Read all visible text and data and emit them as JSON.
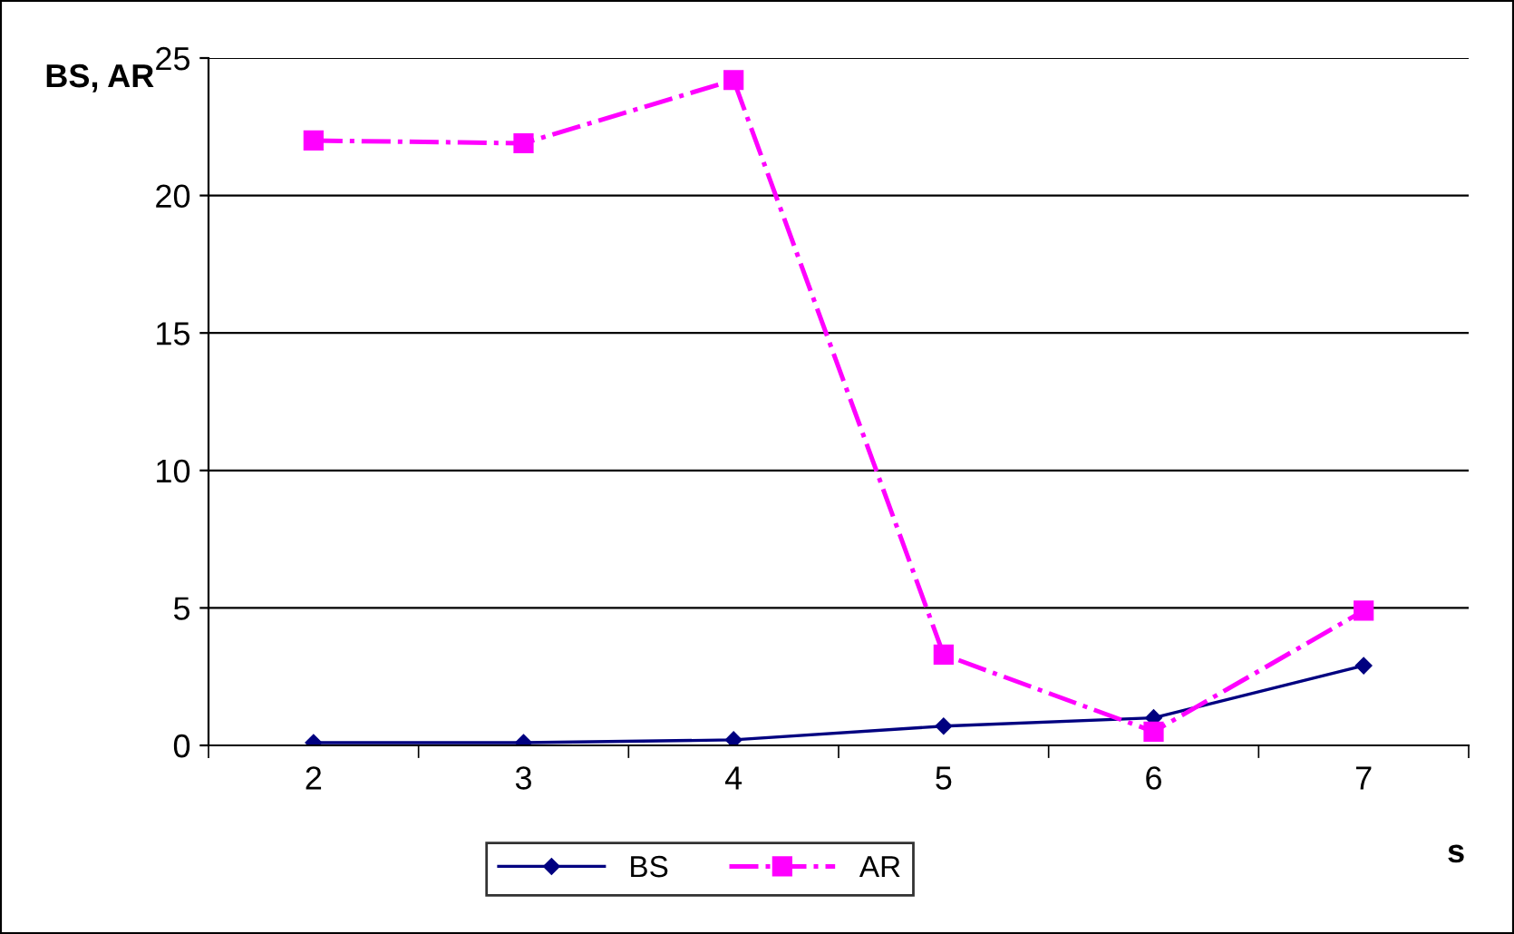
{
  "chart_data": {
    "type": "line",
    "xlabel": "s",
    "ylabel": "BS, AR",
    "categories": [
      "2",
      "3",
      "4",
      "5",
      "6",
      "7"
    ],
    "series": [
      {
        "name": "BS",
        "color": "#000080",
        "marker": "diamond",
        "line_style": "solid",
        "values": [
          0.1,
          0.1,
          0.2,
          0.7,
          1.0,
          2.9
        ]
      },
      {
        "name": "AR",
        "color": "#ff00ff",
        "marker": "square",
        "line_style": "dashdot",
        "values": [
          22.0,
          21.9,
          24.2,
          3.3,
          0.5,
          4.9
        ]
      }
    ],
    "ylim": [
      0,
      25
    ],
    "yticks": [
      0,
      5,
      10,
      15,
      20,
      25
    ],
    "grid": "y",
    "legend": "bottom"
  }
}
